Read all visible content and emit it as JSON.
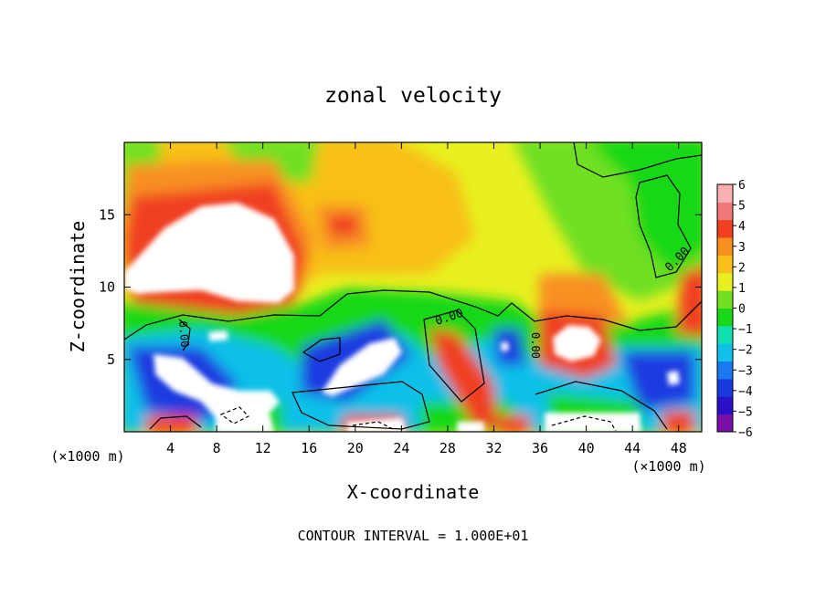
{
  "chart_data": {
    "type": "heatmap",
    "title": "zonal velocity",
    "xlabel": "X-coordinate",
    "ylabel": "Z-coordinate",
    "x_unit_left": "(×1000 m)",
    "x_unit_right": "(×1000 m)",
    "xlim": [
      0,
      50
    ],
    "ylim": [
      0,
      20
    ],
    "x_ticks": [
      4,
      8,
      12,
      16,
      20,
      24,
      28,
      32,
      36,
      40,
      44,
      48
    ],
    "x_tick_labels": [
      "4",
      "8",
      "12",
      "16",
      "20",
      "24",
      "28",
      "32",
      "36",
      "40",
      "44",
      "48"
    ],
    "y_ticks": [
      5,
      10,
      15
    ],
    "y_tick_labels": [
      "5",
      "10",
      "15"
    ],
    "colorbar": {
      "levels": [
        -6,
        -5,
        -4,
        -3,
        -2,
        -1,
        0,
        1,
        2,
        3,
        4,
        5,
        6
      ],
      "labels": [
        "−6",
        "−5",
        "−4",
        "−3",
        "−2",
        "−1",
        "0",
        "1",
        "2",
        "3",
        "4",
        "5",
        "6"
      ],
      "colors": [
        "#7a10a8",
        "#2a10c8",
        "#1a3ae0",
        "#1a78f0",
        "#10c0e8",
        "#10e0b0",
        "#18d818",
        "#70e020",
        "#e8f020",
        "#f8c018",
        "#f89020",
        "#f04020",
        "#f07878",
        "#f8b0b0"
      ],
      "out_of_range": "#ffffff"
    },
    "contour_labels": [
      "0.00",
      "0.00",
      "0.00",
      "0.00"
    ],
    "annotation": "CONTOUR INTERVAL = 1.000E+01"
  }
}
